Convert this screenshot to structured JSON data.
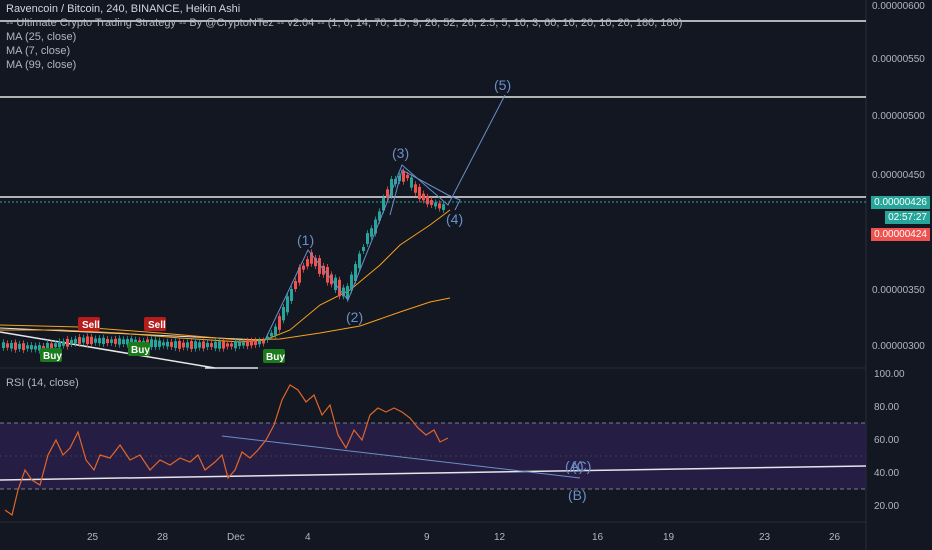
{
  "header": {
    "symbol_line": "Ravencoin / Bitcoin, 240, BINANCE, Heikin Ashi",
    "strategy_line": "-- Ultimate Crypto Trading Strategy -- By @CryptoNTez -- v2.04 -- (1, 0, 14, 70, 1D, 9, 26, 52, 26, 2.5, 5, 10, 3, 60, 10, 20, 10, 20, 180, 180)",
    "ma1": "MA (25, close)",
    "ma2": "MA (7, close)",
    "ma3": "MA (99, close)"
  },
  "rsi_label": "RSI (14, close)",
  "price_axis": [
    "0.00000600",
    "0.00000550",
    "0.00000500",
    "0.00000450",
    "0.00000350",
    "0.00000300"
  ],
  "price_tags": {
    "current": "0.00000426",
    "countdown": "02:57:27",
    "low": "0.00000424",
    "current_color": "#26a69a",
    "low_color": "#ef5350"
  },
  "rsi_axis": [
    "100.00",
    "80.00",
    "60.00",
    "40.00",
    "20.00"
  ],
  "time_axis": [
    "25",
    "28",
    "Dec",
    "4",
    "9",
    "12",
    "16",
    "19",
    "23",
    "26"
  ],
  "waves": [
    "(1)",
    "(2)",
    "(3)",
    "(4)",
    "(5)"
  ],
  "rsi_waves": [
    "(A)",
    "(B)",
    "(C)"
  ],
  "signals": {
    "sell": "Sell",
    "buy": "Buy"
  },
  "colors": {
    "background": "#131722",
    "up": "#26a69a",
    "down": "#ef5350",
    "ma_orange": "#f7a21b",
    "wave": "#6a8fc7",
    "rsi_line": "#e0662a",
    "rsi_band": "#2a1f4a"
  }
}
